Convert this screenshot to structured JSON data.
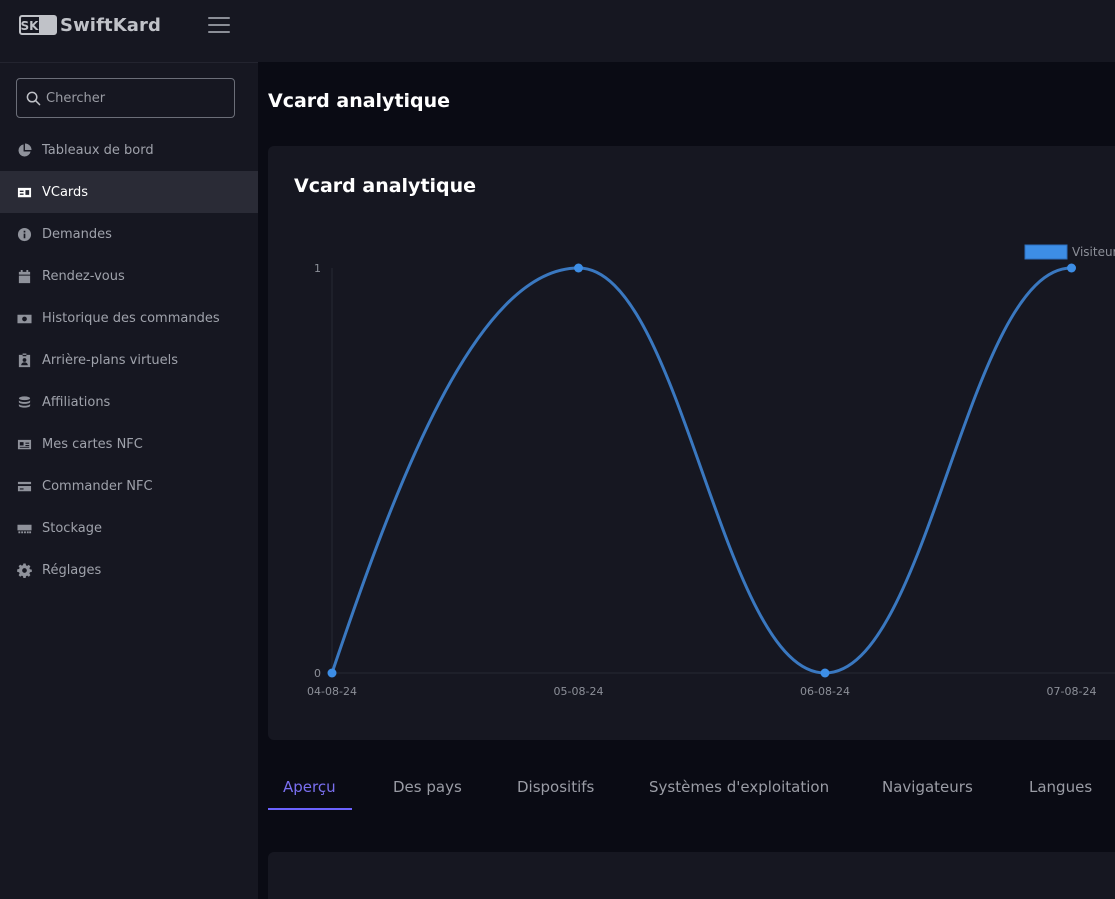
{
  "brand": {
    "name": "SwiftKard",
    "logo_text": "SK"
  },
  "search": {
    "placeholder": "Chercher"
  },
  "sidebar": {
    "items": [
      {
        "label": "Tableaux de bord",
        "icon": "pie-chart-icon",
        "active": false
      },
      {
        "label": "VCards",
        "icon": "id-card-icon",
        "active": true
      },
      {
        "label": "Demandes",
        "icon": "info-circle-icon",
        "active": false
      },
      {
        "label": "Rendez-vous",
        "icon": "calendar-icon",
        "active": false
      },
      {
        "label": "Historique des commandes",
        "icon": "money-bill-icon",
        "active": false
      },
      {
        "label": "Arrière-plans virtuels",
        "icon": "id-badge-icon",
        "active": false
      },
      {
        "label": "Affiliations",
        "icon": "coins-icon",
        "active": false
      },
      {
        "label": "Mes cartes NFC",
        "icon": "vcard-icon",
        "active": false
      },
      {
        "label": "Commander NFC",
        "icon": "credit-card-icon",
        "active": false
      },
      {
        "label": "Stockage",
        "icon": "memory-icon",
        "active": false
      },
      {
        "label": "Réglages",
        "icon": "gear-icon",
        "active": false
      }
    ]
  },
  "page": {
    "title": "Vcard analytique"
  },
  "card": {
    "title": "Vcard analytique"
  },
  "chart_data": {
    "type": "line",
    "categories": [
      "04-08-24",
      "05-08-24",
      "06-08-24",
      "07-08-24"
    ],
    "series": [
      {
        "name": "Visiteurs",
        "values": [
          0,
          1,
          0,
          1
        ]
      }
    ],
    "yticks": [
      "0",
      "1"
    ],
    "ylim": [
      0,
      1
    ],
    "legend": "top-right",
    "line_color": "#3a78c0",
    "legend_color": "#3d8ee6"
  },
  "tabs": [
    {
      "label": "Aperçu",
      "active": true
    },
    {
      "label": "Des pays",
      "active": false
    },
    {
      "label": "Dispositifs",
      "active": false
    },
    {
      "label": "Systèmes d'exploitation",
      "active": false
    },
    {
      "label": "Navigateurs",
      "active": false
    },
    {
      "label": "Langues",
      "active": false
    }
  ]
}
